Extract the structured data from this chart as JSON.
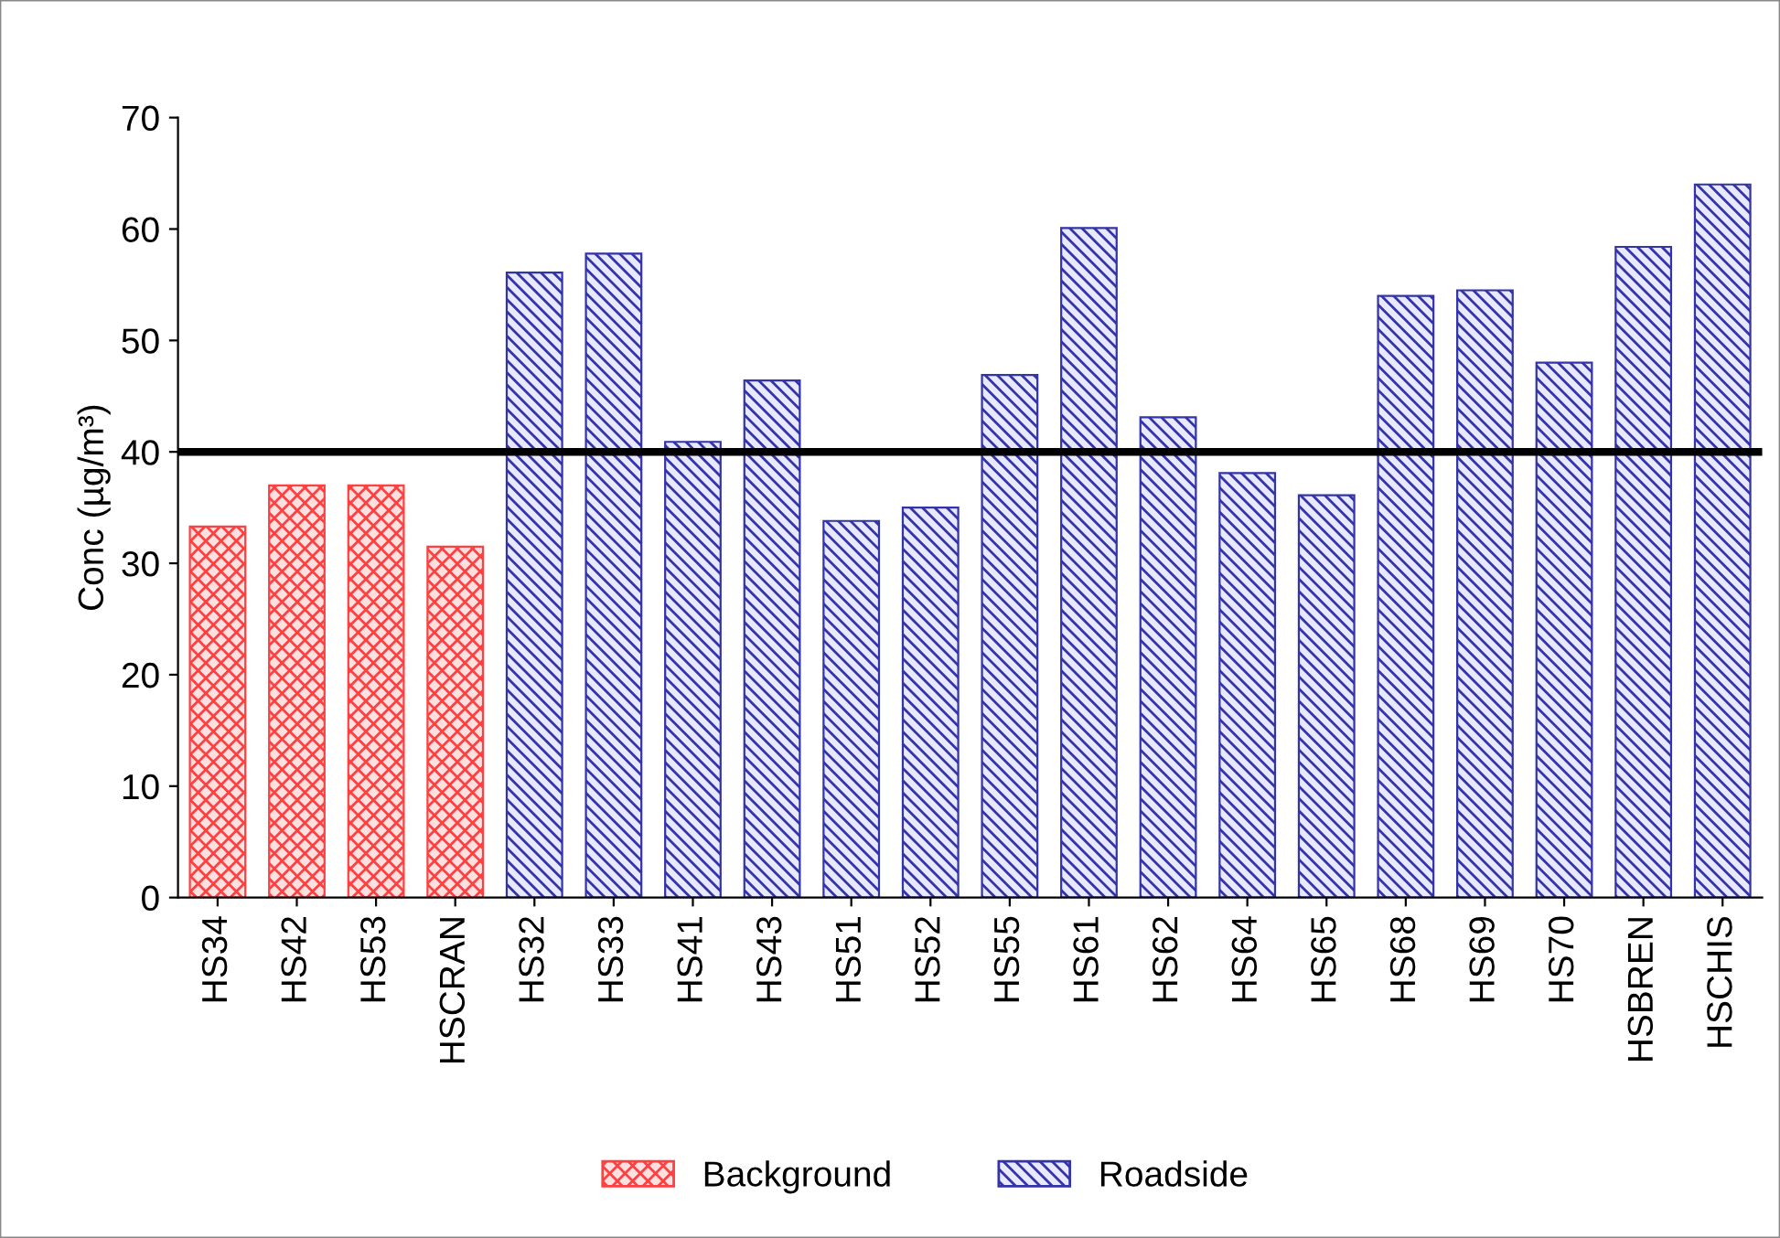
{
  "chart_data": {
    "type": "bar",
    "ylabel": "Conc (µg/m³)",
    "categories": [
      "HS34",
      "HS42",
      "HS53",
      "HSCRAN",
      "HS32",
      "HS33",
      "HS41",
      "HS43",
      "HS51",
      "HS52",
      "HS55",
      "HS61",
      "HS62",
      "HS64",
      "HS65",
      "HS68",
      "HS69",
      "HS70",
      "HSBREN",
      "HSCHIS"
    ],
    "series": [
      {
        "name": "Background",
        "color": "#ff4040",
        "values": [
          33.3,
          37.0,
          37.0,
          31.5,
          null,
          null,
          null,
          null,
          null,
          null,
          null,
          null,
          null,
          null,
          null,
          null,
          null,
          null,
          null,
          null
        ]
      },
      {
        "name": "Roadside",
        "color": "#3333aa",
        "values": [
          null,
          null,
          null,
          null,
          56.1,
          57.8,
          40.9,
          46.4,
          33.8,
          35.0,
          46.9,
          60.1,
          43.1,
          38.1,
          36.1,
          54.0,
          54.5,
          48.0,
          58.4,
          64.0
        ]
      }
    ],
    "ylim": [
      0,
      70
    ],
    "yticks": [
      0,
      10,
      20,
      30,
      40,
      50,
      60,
      70
    ],
    "grid": false,
    "legend": "bottom",
    "ref_lines": [
      {
        "axis": "y",
        "value": 40,
        "color": "#000000"
      }
    ]
  }
}
